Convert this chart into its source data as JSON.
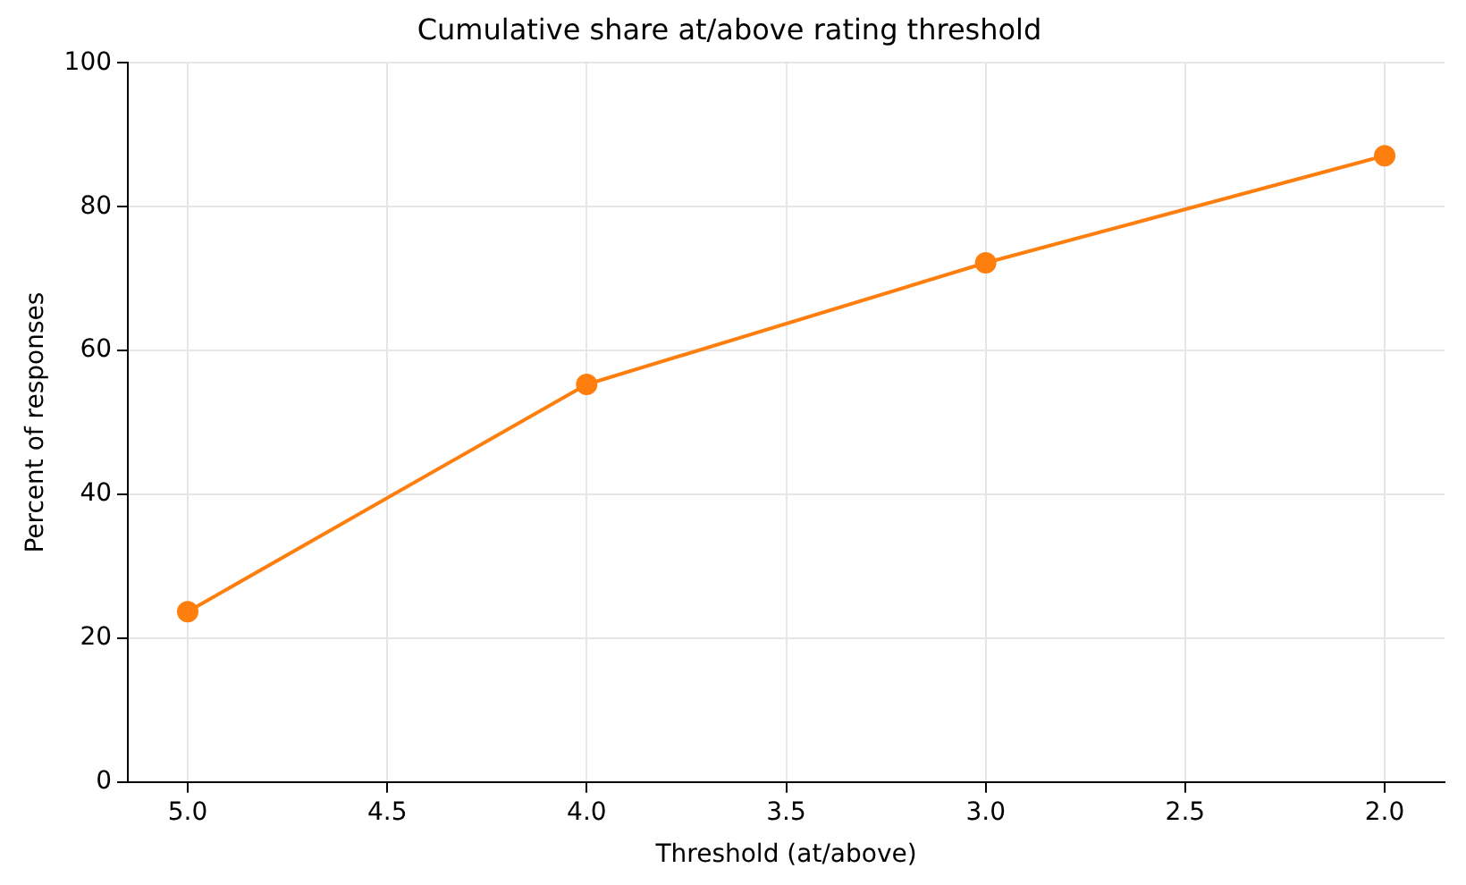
{
  "chart_data": {
    "type": "line",
    "title": "Cumulative share at/above rating threshold",
    "xlabel": "Threshold (at/above)",
    "ylabel": "Percent of responses",
    "x": [
      5,
      4,
      3,
      2
    ],
    "series": [
      {
        "color": "#ff7f0e",
        "values": [
          23.7,
          55.3,
          72.2,
          87.1
        ]
      }
    ],
    "xlim": [
      5.15,
      1.85
    ],
    "xticks": [
      {
        "value": 5,
        "label": "5.0"
      },
      {
        "value": 4.5,
        "label": "4.5"
      },
      {
        "value": 4,
        "label": "4.0"
      },
      {
        "value": 3.5,
        "label": "3.5"
      },
      {
        "value": 3,
        "label": "3.0"
      },
      {
        "value": 2.5,
        "label": "2.5"
      },
      {
        "value": 2,
        "label": "2.0"
      }
    ],
    "ylim": [
      0,
      100
    ],
    "yticks": [
      0,
      20,
      40,
      60,
      80,
      100
    ],
    "grid": true,
    "legend": false,
    "marker": "circle",
    "line_style": "solid"
  }
}
